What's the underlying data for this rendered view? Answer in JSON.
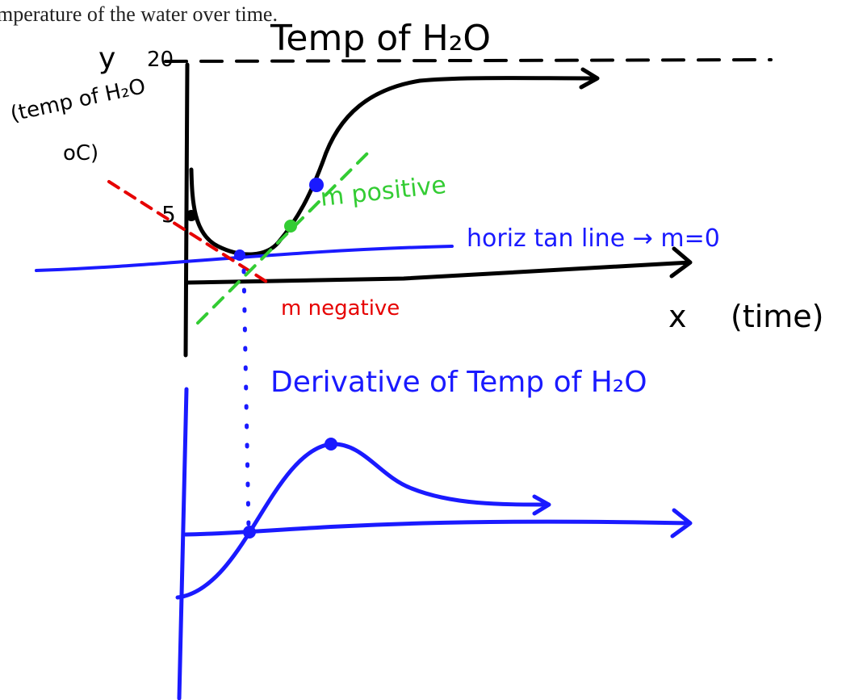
{
  "header": {
    "text": "mperature of the water over time."
  },
  "top_graph": {
    "title": "Temp of H₂O",
    "y_label": "y",
    "y_value": "20",
    "y_axis_label": [
      "(temp of H₂O",
      "oC)"
    ],
    "start_value": "5",
    "x_label": "x",
    "x_axis_label": "(time)",
    "annotations": {
      "positive": "m positive",
      "horizontal": "horiz tan line → m=0",
      "negative": "m negative"
    }
  },
  "bottom_graph": {
    "title": "Derivative of Temp of H₂O"
  }
}
